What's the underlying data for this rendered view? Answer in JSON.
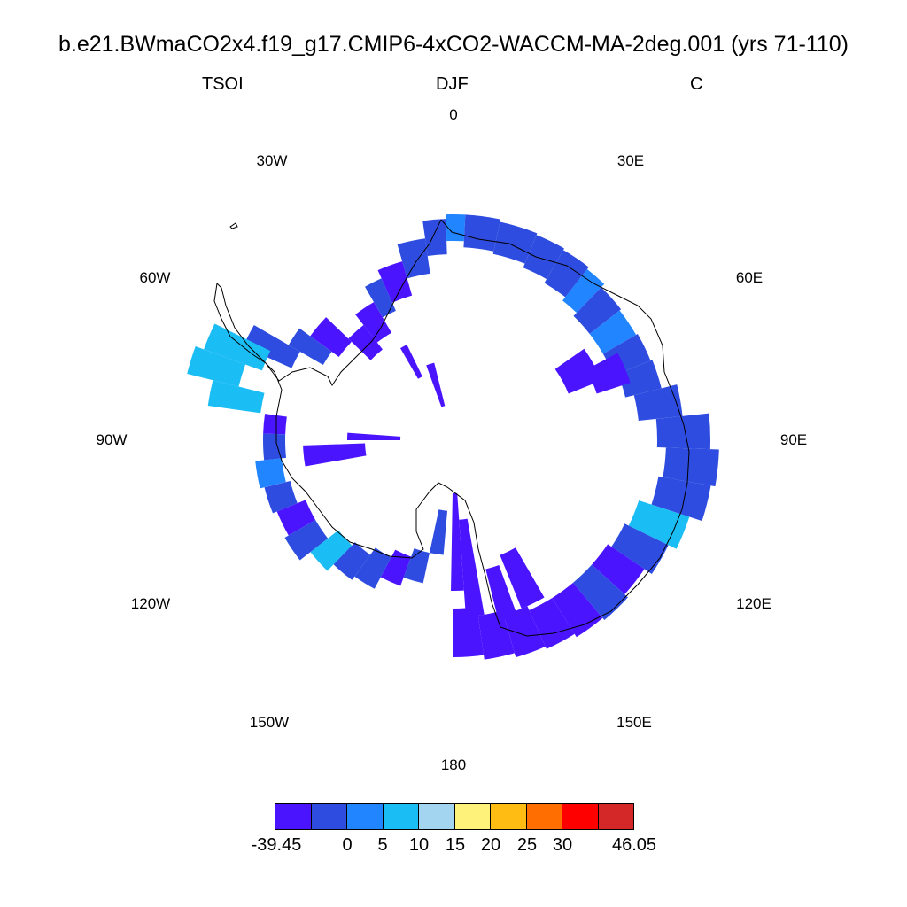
{
  "title": "b.e21.BWmaCO2x4.f19_g17.CMIP6-4xCO2-WACCM-MA-2deg.001 (yrs 71-110)",
  "left_label": "TSOI",
  "center_label": "DJF",
  "right_label": "C",
  "longitude_labels": {
    "lon0": "0",
    "lon30e": "30E",
    "lon60e": "60E",
    "lon90e": "90E",
    "lon120e": "120E",
    "lon150e": "150E",
    "lon180": "180",
    "lon150w": "150W",
    "lon120w": "120W",
    "lon90w": "90W",
    "lon60w": "60W",
    "lon30w": "30W"
  },
  "colorbar": {
    "colors": [
      "#4a14ff",
      "#2e4de0",
      "#2185ff",
      "#1bbdf5",
      "#a3d4f0",
      "#fff27a",
      "#ffbd14",
      "#ff6e00",
      "#ff0000",
      "#d42828"
    ],
    "labels": [
      "-39.45",
      "0",
      "5",
      "10",
      "15",
      "20",
      "25",
      "30",
      "46.05"
    ]
  }
}
